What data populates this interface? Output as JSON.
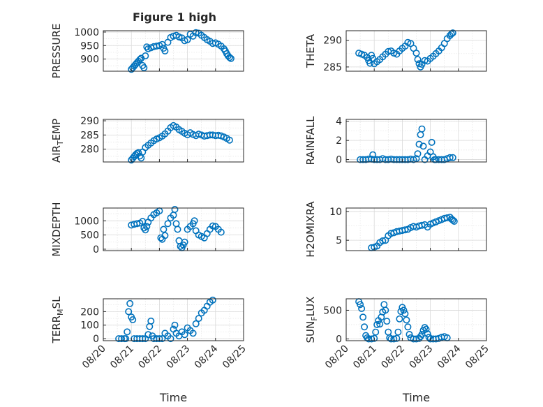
{
  "figure": {
    "title": "Figure 1 high",
    "accent": "#0072BD"
  },
  "chart_data": [
    {
      "type": "scatter",
      "ylabel": "PRESSURE",
      "ylim": [
        855,
        1005
      ],
      "yticks": [
        900,
        950,
        1000
      ],
      "xlim": [
        0,
        5
      ],
      "xticklabels": [
        "",
        "",
        "",
        "",
        "",
        ""
      ],
      "xlabel": "",
      "points": [
        [
          1.0,
          862
        ],
        [
          1.05,
          868
        ],
        [
          1.1,
          874
        ],
        [
          1.15,
          880
        ],
        [
          1.2,
          886
        ],
        [
          1.25,
          892
        ],
        [
          1.3,
          898
        ],
        [
          1.35,
          903
        ],
        [
          1.4,
          876
        ],
        [
          1.45,
          868
        ],
        [
          1.5,
          912
        ],
        [
          1.55,
          945
        ],
        [
          1.6,
          938
        ],
        [
          1.7,
          942
        ],
        [
          1.8,
          946
        ],
        [
          1.9,
          948
        ],
        [
          2.0,
          950
        ],
        [
          2.1,
          954
        ],
        [
          2.15,
          940
        ],
        [
          2.2,
          930
        ],
        [
          2.3,
          962
        ],
        [
          2.4,
          980
        ],
        [
          2.5,
          985
        ],
        [
          2.6,
          988
        ],
        [
          2.7,
          982
        ],
        [
          2.8,
          978
        ],
        [
          2.9,
          968
        ],
        [
          3.0,
          972
        ],
        [
          3.1,
          992
        ],
        [
          3.2,
          985
        ],
        [
          3.3,
          998
        ],
        [
          3.4,
          996
        ],
        [
          3.5,
          988
        ],
        [
          3.6,
          980
        ],
        [
          3.7,
          972
        ],
        [
          3.8,
          966
        ],
        [
          3.9,
          958
        ],
        [
          4.0,
          960
        ],
        [
          4.1,
          955
        ],
        [
          4.2,
          948
        ],
        [
          4.3,
          938
        ],
        [
          4.35,
          930
        ],
        [
          4.4,
          920
        ],
        [
          4.45,
          912
        ],
        [
          4.5,
          906
        ],
        [
          4.55,
          902
        ]
      ]
    },
    {
      "type": "scatter",
      "ylabel": "THETA",
      "ylim": [
        284.2,
        291.8
      ],
      "yticks": [
        285,
        290
      ],
      "xlim": [
        0,
        5
      ],
      "xticklabels": [
        "",
        "",
        "",
        "",
        "",
        ""
      ],
      "xlabel": "",
      "points": [
        [
          0.45,
          287.6
        ],
        [
          0.55,
          287.4
        ],
        [
          0.65,
          287.2
        ],
        [
          0.75,
          286.8
        ],
        [
          0.8,
          286.2
        ],
        [
          0.85,
          285.7
        ],
        [
          0.9,
          287.2
        ],
        [
          0.95,
          286.6
        ],
        [
          1.0,
          285.6
        ],
        [
          1.1,
          286.0
        ],
        [
          1.2,
          286.4
        ],
        [
          1.3,
          286.9
        ],
        [
          1.4,
          287.4
        ],
        [
          1.5,
          287.9
        ],
        [
          1.6,
          288.0
        ],
        [
          1.7,
          287.6
        ],
        [
          1.8,
          287.4
        ],
        [
          1.9,
          288.0
        ],
        [
          2.0,
          288.5
        ],
        [
          2.1,
          288.9
        ],
        [
          2.2,
          289.6
        ],
        [
          2.3,
          289.4
        ],
        [
          2.4,
          288.5
        ],
        [
          2.5,
          287.6
        ],
        [
          2.55,
          286.4
        ],
        [
          2.6,
          285.6
        ],
        [
          2.65,
          285.0
        ],
        [
          2.7,
          285.5
        ],
        [
          2.8,
          286.2
        ],
        [
          2.9,
          286.1
        ],
        [
          3.0,
          286.6
        ],
        [
          3.1,
          287.0
        ],
        [
          3.2,
          287.5
        ],
        [
          3.3,
          288.0
        ],
        [
          3.4,
          288.6
        ],
        [
          3.5,
          289.4
        ],
        [
          3.6,
          290.3
        ],
        [
          3.7,
          290.9
        ],
        [
          3.75,
          291.2
        ],
        [
          3.8,
          291.4
        ]
      ]
    },
    {
      "type": "scatter",
      "ylabel": "AIR_TEMP",
      "ylim": [
        275.5,
        290.5
      ],
      "yticks": [
        280,
        285,
        290
      ],
      "xlim": [
        0,
        5
      ],
      "xticklabels": [
        "",
        "",
        "",
        "",
        "",
        ""
      ],
      "xlabel": "",
      "points": [
        [
          1.0,
          276.2
        ],
        [
          1.05,
          276.8
        ],
        [
          1.1,
          277.4
        ],
        [
          1.15,
          278.0
        ],
        [
          1.2,
          278.5
        ],
        [
          1.25,
          278.8
        ],
        [
          1.3,
          277.6
        ],
        [
          1.35,
          276.9
        ],
        [
          1.4,
          279.0
        ],
        [
          1.5,
          280.6
        ],
        [
          1.6,
          281.4
        ],
        [
          1.7,
          282.2
        ],
        [
          1.8,
          283.0
        ],
        [
          1.9,
          283.6
        ],
        [
          2.0,
          284.0
        ],
        [
          2.1,
          284.6
        ],
        [
          2.2,
          285.4
        ],
        [
          2.3,
          286.4
        ],
        [
          2.4,
          287.6
        ],
        [
          2.5,
          288.3
        ],
        [
          2.6,
          287.8
        ],
        [
          2.7,
          286.9
        ],
        [
          2.8,
          286.3
        ],
        [
          2.9,
          285.6
        ],
        [
          3.0,
          285.1
        ],
        [
          3.1,
          285.8
        ],
        [
          3.2,
          285.2
        ],
        [
          3.3,
          284.8
        ],
        [
          3.4,
          285.3
        ],
        [
          3.5,
          285.0
        ],
        [
          3.6,
          284.6
        ],
        [
          3.7,
          284.8
        ],
        [
          3.8,
          285.0
        ],
        [
          3.9,
          285.0
        ],
        [
          4.0,
          284.8
        ],
        [
          4.1,
          284.9
        ],
        [
          4.2,
          284.7
        ],
        [
          4.3,
          284.3
        ],
        [
          4.4,
          283.8
        ],
        [
          4.5,
          283.2
        ]
      ]
    },
    {
      "type": "scatter",
      "ylabel": "RAINFALL",
      "ylim": [
        -0.25,
        4.2
      ],
      "yticks": [
        0,
        2,
        4
      ],
      "xlim": [
        0,
        5
      ],
      "xticklabels": [
        "",
        "",
        "",
        "",
        "",
        ""
      ],
      "xlabel": "",
      "points": [
        [
          0.5,
          0
        ],
        [
          0.6,
          0
        ],
        [
          0.7,
          0
        ],
        [
          0.8,
          0.05
        ],
        [
          0.9,
          0.05
        ],
        [
          0.95,
          0.5
        ],
        [
          1.0,
          0
        ],
        [
          1.1,
          0
        ],
        [
          1.2,
          0
        ],
        [
          1.3,
          0.1
        ],
        [
          1.4,
          0
        ],
        [
          1.5,
          0
        ],
        [
          1.6,
          0.05
        ],
        [
          1.7,
          0
        ],
        [
          1.8,
          0
        ],
        [
          1.9,
          0
        ],
        [
          2.0,
          0
        ],
        [
          2.1,
          0
        ],
        [
          2.2,
          0
        ],
        [
          2.3,
          0.05
        ],
        [
          2.4,
          0
        ],
        [
          2.5,
          0.1
        ],
        [
          2.55,
          0.6
        ],
        [
          2.6,
          1.6
        ],
        [
          2.65,
          2.6
        ],
        [
          2.7,
          3.2
        ],
        [
          2.75,
          1.4
        ],
        [
          2.8,
          0
        ],
        [
          2.9,
          0.4
        ],
        [
          3.0,
          0.8
        ],
        [
          3.05,
          1.8
        ],
        [
          3.1,
          0.3
        ],
        [
          3.15,
          0
        ],
        [
          3.2,
          0
        ],
        [
          3.3,
          0
        ],
        [
          3.4,
          0
        ],
        [
          3.5,
          0
        ],
        [
          3.6,
          0.1
        ],
        [
          3.7,
          0.2
        ],
        [
          3.8,
          0.2
        ]
      ]
    },
    {
      "type": "scatter",
      "ylabel": "MIXDEPTH",
      "ylim": [
        -50,
        1450
      ],
      "yticks": [
        0,
        500,
        1000
      ],
      "xlim": [
        0,
        5
      ],
      "xticklabels": [
        "",
        "",
        "",
        "",
        "",
        ""
      ],
      "xlabel": "",
      "points": [
        [
          1.0,
          850
        ],
        [
          1.1,
          880
        ],
        [
          1.2,
          900
        ],
        [
          1.3,
          920
        ],
        [
          1.4,
          980
        ],
        [
          1.45,
          750
        ],
        [
          1.5,
          680
        ],
        [
          1.55,
          800
        ],
        [
          1.6,
          950
        ],
        [
          1.7,
          1100
        ],
        [
          1.8,
          1220
        ],
        [
          1.9,
          1280
        ],
        [
          2.0,
          1350
        ],
        [
          2.05,
          400
        ],
        [
          2.1,
          350
        ],
        [
          2.15,
          700
        ],
        [
          2.2,
          480
        ],
        [
          2.3,
          900
        ],
        [
          2.4,
          1100
        ],
        [
          2.5,
          1200
        ],
        [
          2.55,
          1400
        ],
        [
          2.6,
          900
        ],
        [
          2.65,
          700
        ],
        [
          2.7,
          300
        ],
        [
          2.75,
          100
        ],
        [
          2.8,
          50
        ],
        [
          2.85,
          150
        ],
        [
          2.9,
          250
        ],
        [
          3.0,
          700
        ],
        [
          3.1,
          800
        ],
        [
          3.2,
          900
        ],
        [
          3.25,
          1000
        ],
        [
          3.3,
          650
        ],
        [
          3.4,
          500
        ],
        [
          3.5,
          450
        ],
        [
          3.6,
          400
        ],
        [
          3.7,
          550
        ],
        [
          3.8,
          700
        ],
        [
          3.9,
          820
        ],
        [
          4.0,
          800
        ],
        [
          4.1,
          700
        ],
        [
          4.2,
          600
        ]
      ]
    },
    {
      "type": "scatter",
      "ylabel": "H2OMIXRA",
      "ylim": [
        3.2,
        10.6
      ],
      "yticks": [
        5,
        10
      ],
      "xlim": [
        0,
        5
      ],
      "xticklabels": [
        "",
        "",
        "",
        "",
        "",
        ""
      ],
      "xlabel": "",
      "points": [
        [
          0.9,
          3.7
        ],
        [
          1.0,
          3.8
        ],
        [
          1.1,
          4.0
        ],
        [
          1.2,
          4.6
        ],
        [
          1.3,
          4.9
        ],
        [
          1.4,
          5.0
        ],
        [
          1.5,
          5.8
        ],
        [
          1.6,
          6.2
        ],
        [
          1.7,
          6.3
        ],
        [
          1.8,
          6.5
        ],
        [
          1.9,
          6.6
        ],
        [
          2.0,
          6.7
        ],
        [
          2.1,
          6.8
        ],
        [
          2.2,
          6.9
        ],
        [
          2.3,
          7.2
        ],
        [
          2.4,
          7.4
        ],
        [
          2.5,
          7.3
        ],
        [
          2.6,
          7.5
        ],
        [
          2.7,
          7.6
        ],
        [
          2.8,
          7.7
        ],
        [
          2.9,
          7.3
        ],
        [
          3.0,
          7.8
        ],
        [
          3.1,
          8.0
        ],
        [
          3.2,
          8.2
        ],
        [
          3.3,
          8.4
        ],
        [
          3.4,
          8.6
        ],
        [
          3.5,
          8.8
        ],
        [
          3.6,
          8.9
        ],
        [
          3.7,
          9.0
        ],
        [
          3.75,
          8.7
        ],
        [
          3.8,
          8.5
        ],
        [
          3.85,
          8.3
        ]
      ]
    },
    {
      "type": "scatter",
      "ylabel": "TERR_MSL",
      "ylim": [
        -15,
        295
      ],
      "yticks": [
        0,
        100,
        200
      ],
      "xlim": [
        0,
        5
      ],
      "xticklabels": [
        "08/20",
        "08/21",
        "08/22",
        "08/23",
        "08/24",
        "08/25"
      ],
      "xlabel": "Time",
      "points": [
        [
          0.55,
          0
        ],
        [
          0.65,
          0
        ],
        [
          0.75,
          0
        ],
        [
          0.8,
          0
        ],
        [
          0.85,
          50
        ],
        [
          0.9,
          200
        ],
        [
          0.95,
          260
        ],
        [
          1.0,
          160
        ],
        [
          1.05,
          140
        ],
        [
          1.1,
          0
        ],
        [
          1.2,
          0
        ],
        [
          1.3,
          0
        ],
        [
          1.4,
          0
        ],
        [
          1.5,
          0
        ],
        [
          1.6,
          30
        ],
        [
          1.65,
          90
        ],
        [
          1.7,
          130
        ],
        [
          1.75,
          20
        ],
        [
          1.8,
          0
        ],
        [
          1.9,
          0
        ],
        [
          2.0,
          0
        ],
        [
          2.1,
          0
        ],
        [
          2.2,
          40
        ],
        [
          2.3,
          20
        ],
        [
          2.4,
          0
        ],
        [
          2.5,
          70
        ],
        [
          2.55,
          100
        ],
        [
          2.6,
          40
        ],
        [
          2.7,
          20
        ],
        [
          2.8,
          50
        ],
        [
          2.9,
          30
        ],
        [
          3.0,
          80
        ],
        [
          3.1,
          60
        ],
        [
          3.2,
          40
        ],
        [
          3.3,
          110
        ],
        [
          3.4,
          150
        ],
        [
          3.5,
          190
        ],
        [
          3.6,
          210
        ],
        [
          3.7,
          240
        ],
        [
          3.8,
          270
        ],
        [
          3.9,
          285
        ]
      ]
    },
    {
      "type": "scatter",
      "ylabel": "SUN_FLUX",
      "ylim": [
        -30,
        700
      ],
      "yticks": [
        0,
        500
      ],
      "xlim": [
        0,
        5
      ],
      "xticklabels": [
        "08/20",
        "08/21",
        "08/22",
        "08/23",
        "08/24",
        "08/25"
      ],
      "xlabel": "Time",
      "points": [
        [
          0.45,
          650
        ],
        [
          0.5,
          600
        ],
        [
          0.55,
          530
        ],
        [
          0.6,
          380
        ],
        [
          0.65,
          210
        ],
        [
          0.7,
          60
        ],
        [
          0.75,
          20
        ],
        [
          0.8,
          0
        ],
        [
          0.9,
          0
        ],
        [
          1.0,
          10
        ],
        [
          1.05,
          120
        ],
        [
          1.1,
          250
        ],
        [
          1.15,
          320
        ],
        [
          1.2,
          260
        ],
        [
          1.25,
          380
        ],
        [
          1.3,
          470
        ],
        [
          1.35,
          600
        ],
        [
          1.4,
          500
        ],
        [
          1.45,
          310
        ],
        [
          1.5,
          120
        ],
        [
          1.55,
          20
        ],
        [
          1.6,
          0
        ],
        [
          1.7,
          0
        ],
        [
          1.8,
          10
        ],
        [
          1.85,
          120
        ],
        [
          1.9,
          350
        ],
        [
          1.95,
          480
        ],
        [
          2.0,
          550
        ],
        [
          2.05,
          500
        ],
        [
          2.1,
          440
        ],
        [
          2.15,
          330
        ],
        [
          2.2,
          210
        ],
        [
          2.25,
          80
        ],
        [
          2.3,
          20
        ],
        [
          2.4,
          0
        ],
        [
          2.5,
          0
        ],
        [
          2.6,
          10
        ],
        [
          2.65,
          40
        ],
        [
          2.7,
          80
        ],
        [
          2.75,
          150
        ],
        [
          2.8,
          200
        ],
        [
          2.85,
          170
        ],
        [
          2.9,
          90
        ],
        [
          2.95,
          30
        ],
        [
          3.0,
          0
        ],
        [
          3.1,
          0
        ],
        [
          3.2,
          0
        ],
        [
          3.3,
          10
        ],
        [
          3.4,
          30
        ],
        [
          3.5,
          40
        ],
        [
          3.6,
          20
        ]
      ]
    }
  ]
}
